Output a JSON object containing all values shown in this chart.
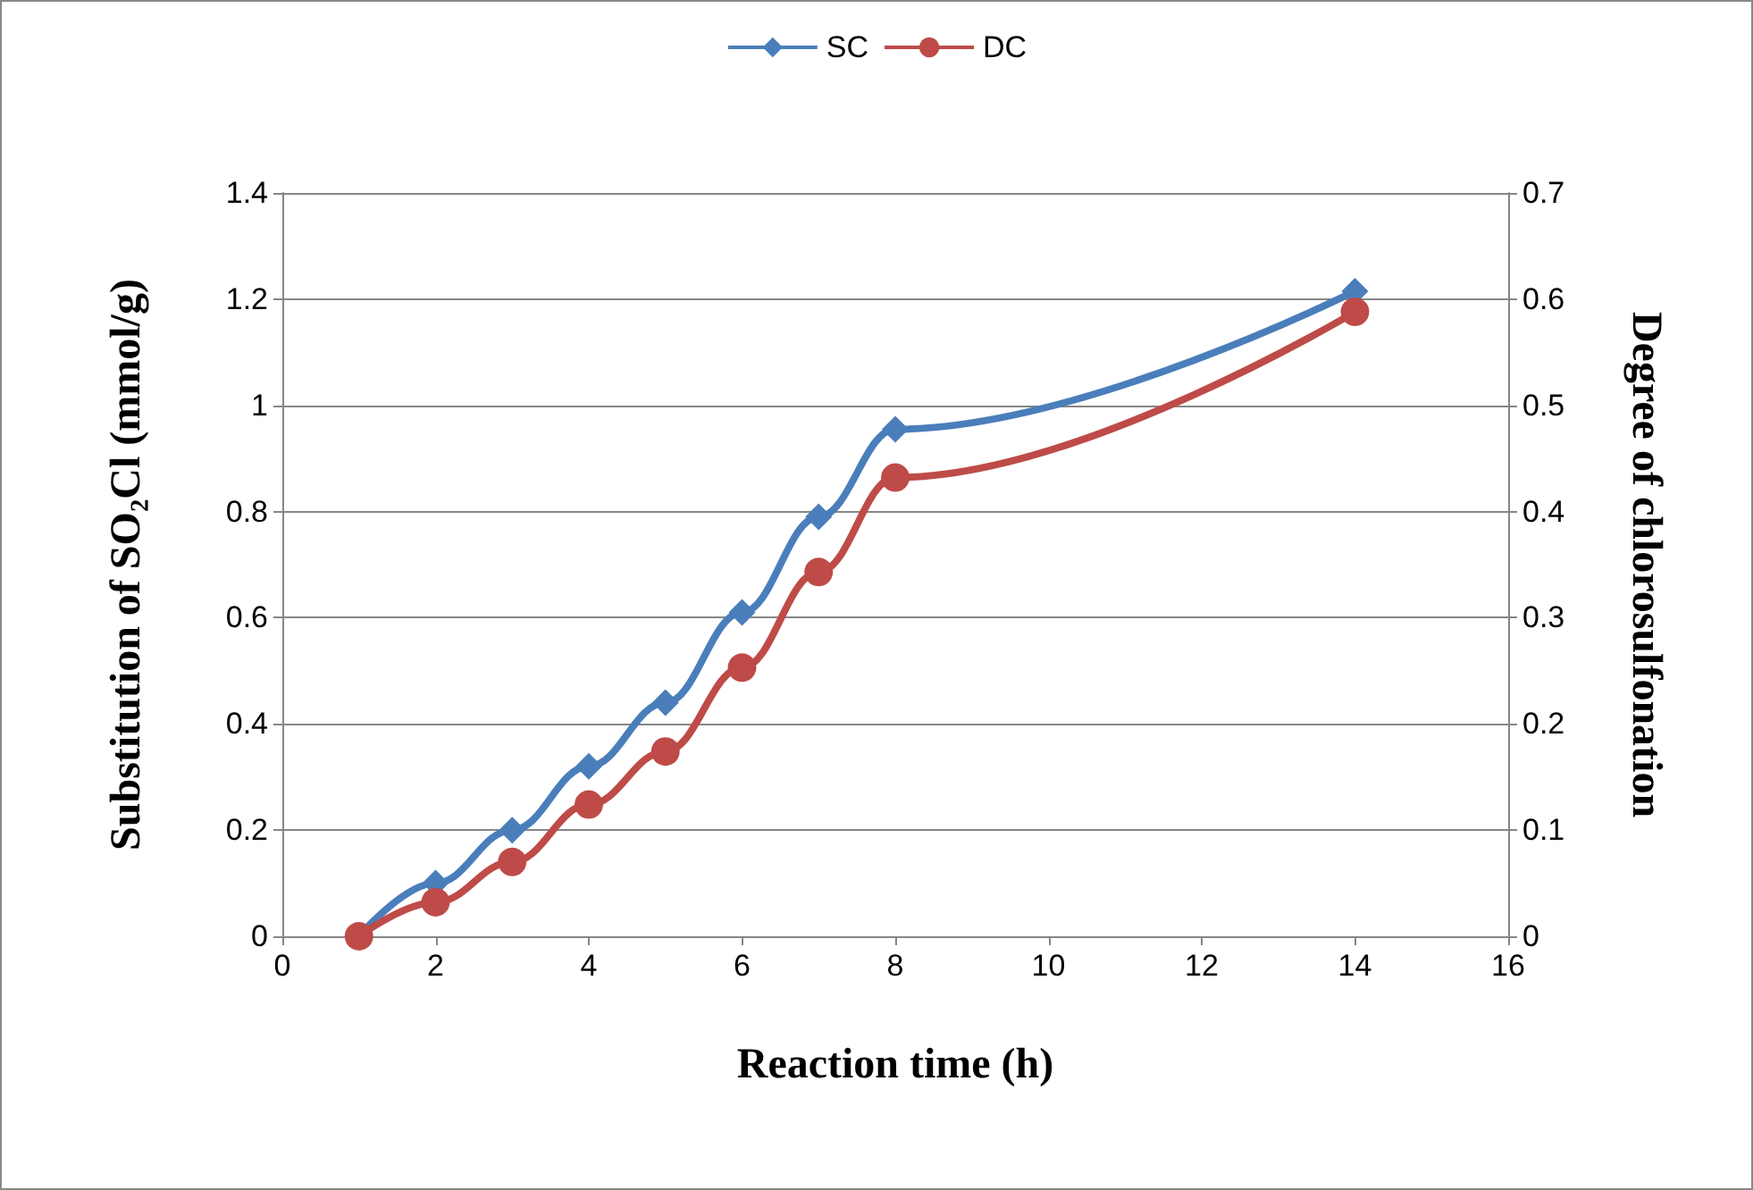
{
  "chart_data": {
    "type": "line",
    "xlabel": "Reaction time (h)",
    "ylabel": "Substitution of SO₂Cl (mmol/g)",
    "y2label": "Degree of chlorosulfonation",
    "x": [
      1,
      2,
      3,
      4,
      5,
      6,
      7,
      8,
      14
    ],
    "series": [
      {
        "name": "SC",
        "color": "#4a7ebb",
        "marker": "diamond",
        "values": [
          0.0,
          0.1,
          0.2,
          0.32,
          0.44,
          0.61,
          0.79,
          0.955,
          1.215
        ]
      },
      {
        "name": "DC",
        "color": "#be4b48",
        "marker": "circle",
        "axis": "y2",
        "values": [
          0.0,
          0.032,
          0.07,
          0.124,
          0.174,
          0.253,
          0.343,
          0.432,
          0.588
        ]
      }
    ],
    "xlim": [
      0,
      16
    ],
    "xticks": [
      0,
      2,
      4,
      6,
      8,
      10,
      12,
      14,
      16
    ],
    "ylim": [
      0,
      1.4
    ],
    "yticks": [
      0,
      0.2,
      0.4,
      0.6,
      0.8,
      1,
      1.2,
      1.4
    ],
    "y2lim": [
      0,
      0.7
    ],
    "y2ticks": [
      0,
      0.1,
      0.2,
      0.3,
      0.4,
      0.5,
      0.6,
      0.7
    ],
    "grid": "y",
    "legend": "top",
    "line_style": "solid"
  }
}
